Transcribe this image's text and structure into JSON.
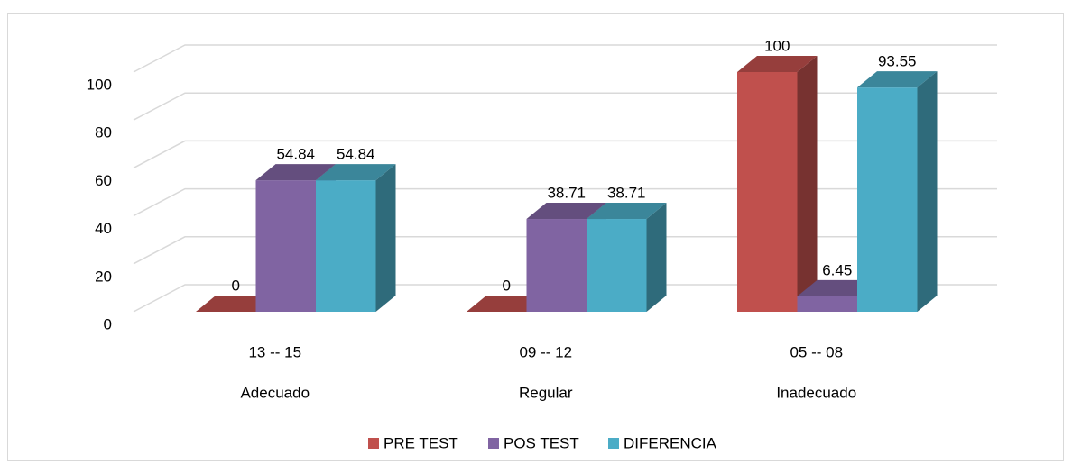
{
  "chart_data": {
    "type": "bar3d",
    "categories": [
      "13 -- 15",
      "09 -- 12",
      "05 -- 08"
    ],
    "category_groups": [
      "Adecuado",
      "Regular",
      "Inadecuado"
    ],
    "series": [
      {
        "name": "PRE TEST",
        "color": "#c0504d",
        "values": [
          0,
          0,
          100
        ]
      },
      {
        "name": "POS TEST",
        "color": "#8064a2",
        "values": [
          54.84,
          38.71,
          6.45
        ]
      },
      {
        "name": "DIFERENCIA",
        "color": "#4bacc6",
        "values": [
          54.84,
          38.71,
          93.55
        ]
      }
    ],
    "ylim": [
      0,
      100
    ],
    "yticks": [
      0,
      20,
      40,
      60,
      80,
      100
    ],
    "grid": true,
    "legend": "bottom"
  }
}
